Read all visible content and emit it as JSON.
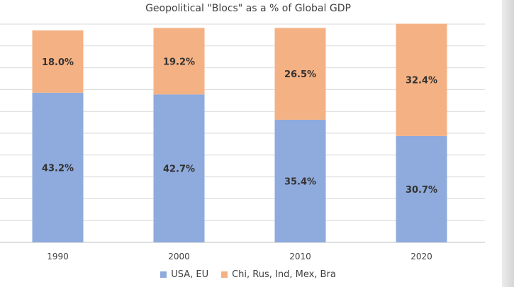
{
  "chart_data": {
    "type": "bar",
    "stacked": true,
    "title": "Geopolitical \"Blocs\" as a % of Global GDP",
    "categories": [
      "1990",
      "2000",
      "2010",
      "2020"
    ],
    "series": [
      {
        "name": "USA, EU",
        "values": [
          43.2,
          42.7,
          35.4,
          30.7
        ],
        "labels": [
          "43.2%",
          "42.7%",
          "35.4%",
          "30.7%"
        ],
        "color": "#8faadc"
      },
      {
        "name": "Chi, Rus, Ind, Mex, Bra",
        "values": [
          18.0,
          19.2,
          26.5,
          32.4
        ],
        "labels": [
          "18.0%",
          "19.2%",
          "26.5%",
          "32.4%"
        ],
        "color": "#f4b183"
      }
    ],
    "ylim": [
      0,
      63
    ],
    "grid": true,
    "legend_position": "bottom"
  }
}
